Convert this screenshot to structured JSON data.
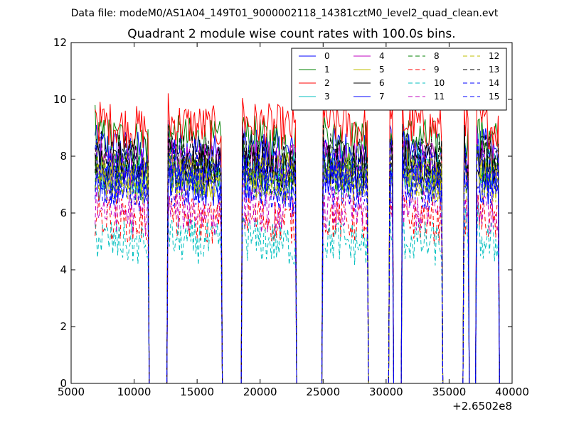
{
  "suptitle": "Data file: modeM0/AS1A04_149T01_9000002118_14381cztM0_level2_quad_clean.evt",
  "chart_data": {
    "type": "line",
    "title": "Quadrant 2 module wise count rates with 100.0s bins.",
    "xlabel": "",
    "ylabel": "",
    "x_offset_label": "+2.6502e8",
    "xlim": [
      5000,
      40000
    ],
    "ylim": [
      0,
      12
    ],
    "xticks": [
      "5000",
      "10000",
      "15000",
      "20000",
      "25000",
      "30000",
      "35000",
      "40000"
    ],
    "yticks": [
      "0",
      "2",
      "4",
      "6",
      "8",
      "10",
      "12"
    ],
    "grid": false,
    "legend_position": "top-right",
    "active_segments": [
      [
        6900,
        11100
      ],
      [
        12700,
        16950
      ],
      [
        18600,
        22850
      ],
      [
        25000,
        28550
      ],
      [
        30250,
        30550
      ],
      [
        31250,
        34450
      ],
      [
        36200,
        36550
      ],
      [
        37200,
        38900
      ]
    ],
    "gap_ranges": [
      [
        11350,
        12550
      ],
      [
        17150,
        18450
      ],
      [
        23050,
        24850
      ],
      [
        28800,
        30100
      ],
      [
        30750,
        31100
      ],
      [
        34650,
        36050
      ],
      [
        36750,
        37050
      ]
    ],
    "series": [
      {
        "name": "0",
        "color": "#0000ff",
        "style": "solid",
        "level": 8.3
      },
      {
        "name": "1",
        "color": "#008000",
        "style": "solid",
        "level": 8.7
      },
      {
        "name": "2",
        "color": "#ff0000",
        "style": "solid",
        "level": 9.2
      },
      {
        "name": "3",
        "color": "#00bfbf",
        "style": "solid",
        "level": 7.6
      },
      {
        "name": "4",
        "color": "#bf00bf",
        "style": "solid",
        "level": 7.9
      },
      {
        "name": "5",
        "color": "#bfbf00",
        "style": "solid",
        "level": 7.5
      },
      {
        "name": "6",
        "color": "#000000",
        "style": "solid",
        "level": 7.8
      },
      {
        "name": "7",
        "color": "#0000ff",
        "style": "solid",
        "level": 7.2
      },
      {
        "name": "8",
        "color": "#008000",
        "style": "dashed",
        "level": 7.4
      },
      {
        "name": "9",
        "color": "#ff0000",
        "style": "dashed",
        "level": 5.9
      },
      {
        "name": "10",
        "color": "#00bfbf",
        "style": "dashed",
        "level": 5.1
      },
      {
        "name": "11",
        "color": "#bf00bf",
        "style": "dashed",
        "level": 6.2
      },
      {
        "name": "12",
        "color": "#bfbf00",
        "style": "dashed",
        "level": 7.3
      },
      {
        "name": "13",
        "color": "#000000",
        "style": "dashed",
        "level": 8.1
      },
      {
        "name": "14",
        "color": "#0000ff",
        "style": "dashed",
        "level": 7.0
      },
      {
        "name": "15",
        "color": "#0000ff",
        "style": "dashed",
        "level": 7.6
      }
    ]
  }
}
